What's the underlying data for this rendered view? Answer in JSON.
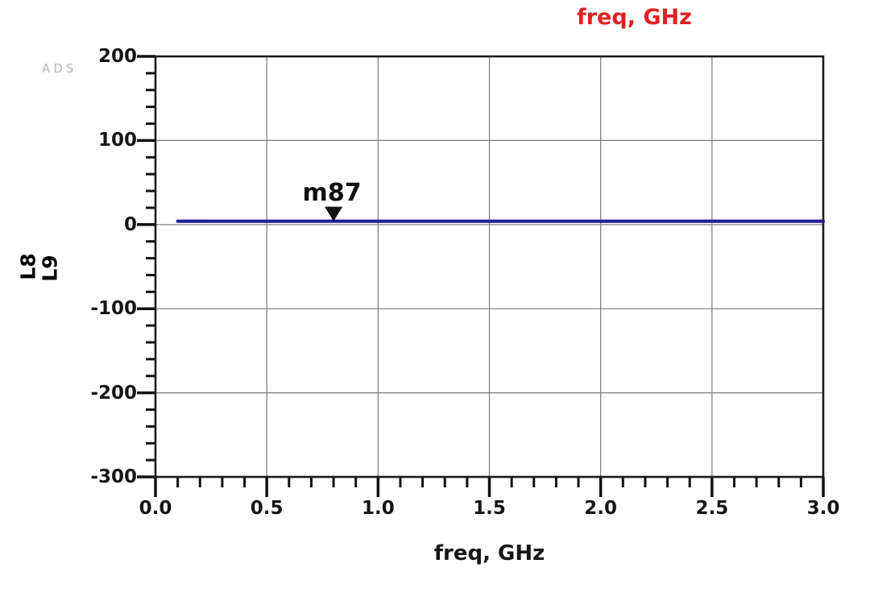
{
  "chart_data": {
    "type": "line",
    "top_title": "freq, GHz",
    "xlabel": "freq, GHz",
    "watermark": "ADS",
    "xlim": [
      0.0,
      3.0
    ],
    "ylim": [
      -300,
      200
    ],
    "x_major_ticks": [
      0.0,
      0.5,
      1.0,
      1.5,
      2.0,
      2.5,
      3.0
    ],
    "x_tick_labels": [
      "0.0",
      "0.5",
      "1.0",
      "1.5",
      "2.0",
      "2.5",
      "3.0"
    ],
    "x_minor_step": 0.1,
    "y_major_ticks": [
      200,
      100,
      0,
      -100,
      -200,
      -300
    ],
    "y_tick_labels": [
      "200",
      "100",
      "0",
      "-100",
      "-200",
      "-300"
    ],
    "y_minor_step": 20,
    "grid": true,
    "legend_position": "left-rotated",
    "legend": [
      {
        "label": "L8",
        "color": "#2a2ec4"
      },
      {
        "label": "L9",
        "color": "#cc2637"
      }
    ],
    "series": [
      {
        "name": "L9",
        "color": "#cc2637",
        "x": [
          0.1,
          3.0
        ],
        "y": [
          4,
          4
        ]
      },
      {
        "name": "L8",
        "color": "#20209a",
        "x": [
          0.1,
          3.0
        ],
        "y": [
          4,
          4
        ]
      }
    ],
    "marker": {
      "label": "m87",
      "x": 0.8,
      "y": 4
    },
    "colors": {
      "grid": "#7a7a7a",
      "frame": "#1a1a1a",
      "tick": "#111111",
      "marker": "#111111",
      "top_title": "#e02222"
    }
  }
}
